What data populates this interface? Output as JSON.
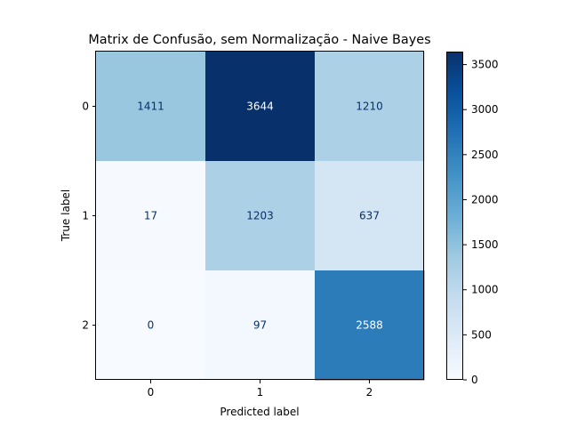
{
  "chart_data": {
    "type": "heatmap",
    "title": "Matrix de Confusão, sem Normalização - Naive Bayes",
    "xlabel": "Predicted label",
    "ylabel": "True label",
    "x_categories": [
      "0",
      "1",
      "2"
    ],
    "y_categories": [
      "0",
      "1",
      "2"
    ],
    "values": [
      [
        1411,
        3644,
        1210
      ],
      [
        17,
        1203,
        637
      ],
      [
        0,
        97,
        2588
      ]
    ],
    "colormap": "Blues",
    "colorbar": {
      "min": 0,
      "max": 3644,
      "ticks": [
        "0",
        "500",
        "1000",
        "1500",
        "2000",
        "2500",
        "3000",
        "3500"
      ]
    },
    "grid": false
  }
}
